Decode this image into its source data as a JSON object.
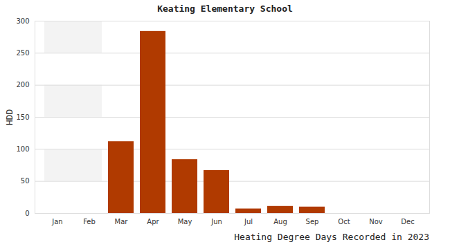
{
  "chart_data": {
    "type": "bar",
    "title": "Keating Elementary School",
    "x_label": "Heating Degree Days Recorded in 2023",
    "y_label": "HDD",
    "categories": [
      "Jan",
      "Feb",
      "Mar",
      "Apr",
      "May",
      "Jun",
      "Jul",
      "Aug",
      "Sep",
      "Oct",
      "Nov",
      "Dec"
    ],
    "values": [
      0,
      0,
      112,
      284,
      84,
      67,
      7,
      11,
      10,
      0,
      0,
      0
    ],
    "color": "#b03a00",
    "ylim": [
      0,
      300
    ],
    "yticks": [
      0,
      50,
      100,
      150,
      200,
      250,
      300
    ],
    "grid": true
  }
}
